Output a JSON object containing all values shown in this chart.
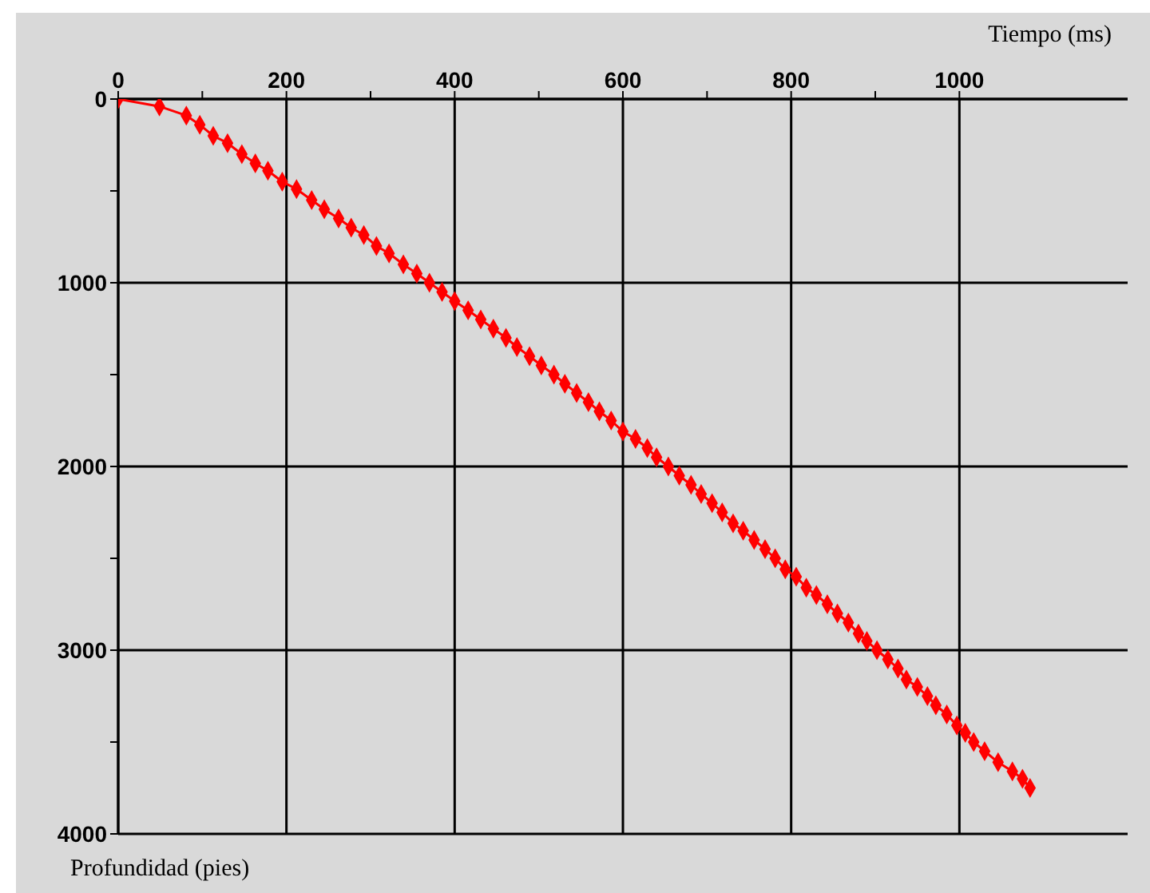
{
  "chart_data": {
    "type": "line",
    "xlabel": "Tiempo (ms)",
    "ylabel": "Profundidad (pies)",
    "marker": "diamond",
    "grid": true,
    "xlim": [
      0,
      1200
    ],
    "xticks": [
      0,
      {
        "value": 100,
        "label": null
      },
      200,
      {
        "value": 300,
        "label": null
      },
      400,
      {
        "value": 500,
        "label": null
      },
      600,
      {
        "value": 700,
        "label": null
      },
      800,
      {
        "value": 900,
        "label": null
      },
      1000
    ],
    "ylim": [
      4000,
      0
    ],
    "yticks": [
      0,
      {
        "value": 500,
        "label": null
      },
      1000,
      {
        "value": 1500,
        "label": null
      },
      2000,
      {
        "value": 2500,
        "label": null
      },
      3000,
      {
        "value": 3500,
        "label": null
      },
      4000
    ],
    "x": [
      0,
      49,
      81,
      97,
      113,
      130,
      147,
      163,
      178,
      195,
      212,
      230,
      245,
      262,
      277,
      292,
      307,
      322,
      339,
      355,
      370,
      385,
      400,
      416,
      431,
      446,
      461,
      474,
      489,
      503,
      518,
      531,
      545,
      559,
      572,
      586,
      600,
      615,
      629,
      640,
      654,
      667,
      681,
      693,
      706,
      718,
      731,
      743,
      756,
      769,
      781,
      793,
      806,
      818,
      830,
      843,
      855,
      868,
      880,
      890,
      902,
      915,
      927,
      937,
      950,
      962,
      972,
      985,
      997,
      1007,
      1017,
      1030,
      1046,
      1063,
      1075,
      1084
    ],
    "series": [
      {
        "color": "#ff0000",
        "values": [
          0,
          40,
          90,
          140,
          200,
          240,
          300,
          350,
          390,
          450,
          490,
          550,
          600,
          650,
          700,
          740,
          800,
          840,
          900,
          950,
          1000,
          1050,
          1100,
          1150,
          1200,
          1250,
          1300,
          1350,
          1400,
          1450,
          1500,
          1550,
          1600,
          1650,
          1700,
          1750,
          1810,
          1850,
          1900,
          1950,
          2000,
          2050,
          2100,
          2150,
          2200,
          2250,
          2310,
          2350,
          2400,
          2450,
          2500,
          2560,
          2600,
          2660,
          2700,
          2750,
          2800,
          2850,
          2910,
          2950,
          3000,
          3050,
          3100,
          3160,
          3200,
          3250,
          3300,
          3350,
          3410,
          3450,
          3500,
          3550,
          3610,
          3660,
          3700,
          3750
        ]
      }
    ]
  }
}
